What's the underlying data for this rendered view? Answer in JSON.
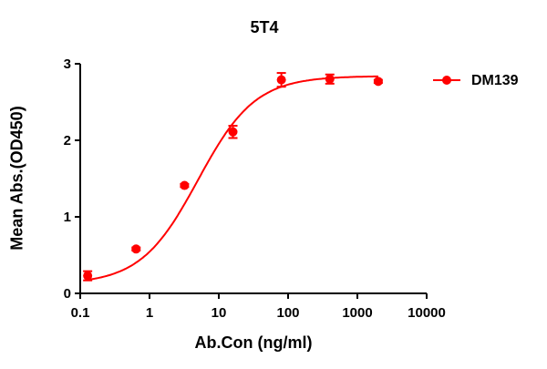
{
  "chart_data": {
    "type": "scatter",
    "title": "5T4",
    "xlabel": "Ab.Con (ng/ml)",
    "ylabel": "Mean Abs.(OD450)",
    "xscale": "log",
    "xlim": [
      0.1,
      10000
    ],
    "ylim": [
      0,
      3
    ],
    "x_ticks": [
      "0.1",
      "1",
      "10",
      "100",
      "1000",
      "10000"
    ],
    "y_ticks": [
      "0",
      "1",
      "2",
      "3"
    ],
    "grid": false,
    "legend_position": "right",
    "series": [
      {
        "name": "DM139",
        "color": "#ff0000",
        "marker": "circle",
        "fit": "4PL sigmoidal",
        "x": [
          0.128,
          0.64,
          3.2,
          16,
          80,
          400,
          2000
        ],
        "y": [
          0.23,
          0.58,
          1.41,
          2.11,
          2.79,
          2.8,
          2.77
        ],
        "error": [
          0.06,
          0.02,
          0.02,
          0.08,
          0.09,
          0.06,
          0.02
        ]
      }
    ]
  }
}
